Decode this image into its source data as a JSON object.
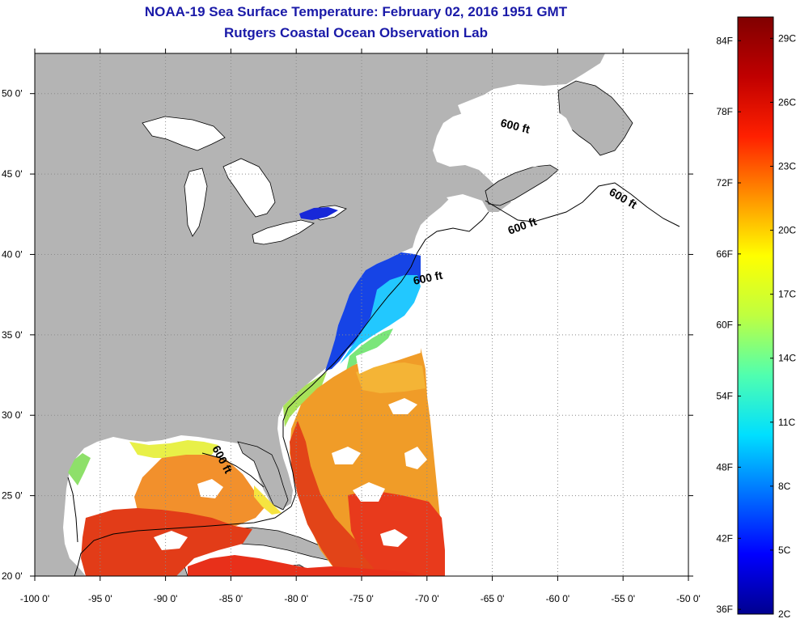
{
  "title_line1": "NOAA-19 Sea Surface Temperature:  February 02, 2016 1951 GMT",
  "title_line2": "Rutgers Coastal Ocean Observation Lab",
  "map": {
    "lat_range": [
      20,
      52.5
    ],
    "lon_range": [
      -100,
      -50
    ],
    "lat_ticks": [
      {
        "value": 50,
        "label": "50 0'"
      },
      {
        "value": 45,
        "label": "45 0'"
      },
      {
        "value": 40,
        "label": "40 0'"
      },
      {
        "value": 35,
        "label": "35 0'"
      },
      {
        "value": 30,
        "label": "30 0'"
      },
      {
        "value": 25,
        "label": "25 0'"
      },
      {
        "value": 20,
        "label": "20 0'"
      }
    ],
    "lon_ticks": [
      {
        "value": -100,
        "label": "-100 0'"
      },
      {
        "value": -95,
        "label": "-95 0'"
      },
      {
        "value": -90,
        "label": "-90 0'"
      },
      {
        "value": -85,
        "label": "-85 0'"
      },
      {
        "value": -80,
        "label": "-80 0'"
      },
      {
        "value": -75,
        "label": "-75 0'"
      },
      {
        "value": -70,
        "label": "-70 0'"
      },
      {
        "value": -65,
        "label": "-65 0'"
      },
      {
        "value": -60,
        "label": "-60 0'"
      },
      {
        "value": -55,
        "label": "-55 0'"
      },
      {
        "value": -50,
        "label": "-50 0'"
      }
    ],
    "depth_labels": [
      "600 ft",
      "600 ft",
      "600 ft",
      "600 ft",
      "600 ft"
    ],
    "colors": {
      "land": "#b4b4b4",
      "ocean": "#ffffff",
      "grid": "#8a8a8a",
      "contour": "#000000"
    }
  },
  "colorbar": {
    "min_c": 2,
    "max_c": 30,
    "f_labels": [
      "84F",
      "78F",
      "72F",
      "66F",
      "60F",
      "54F",
      "48F",
      "42F",
      "36F"
    ],
    "c_labels": [
      "29C",
      "26C",
      "23C",
      "20C",
      "17C",
      "14C",
      "11C",
      "8C",
      "5C",
      "2C"
    ],
    "gradient": [
      "#00008f",
      "#0000ff",
      "#0070ff",
      "#00dfff",
      "#50ffaf",
      "#bfff40",
      "#ffff00",
      "#ff9000",
      "#ff2000",
      "#c00000",
      "#800000"
    ]
  }
}
